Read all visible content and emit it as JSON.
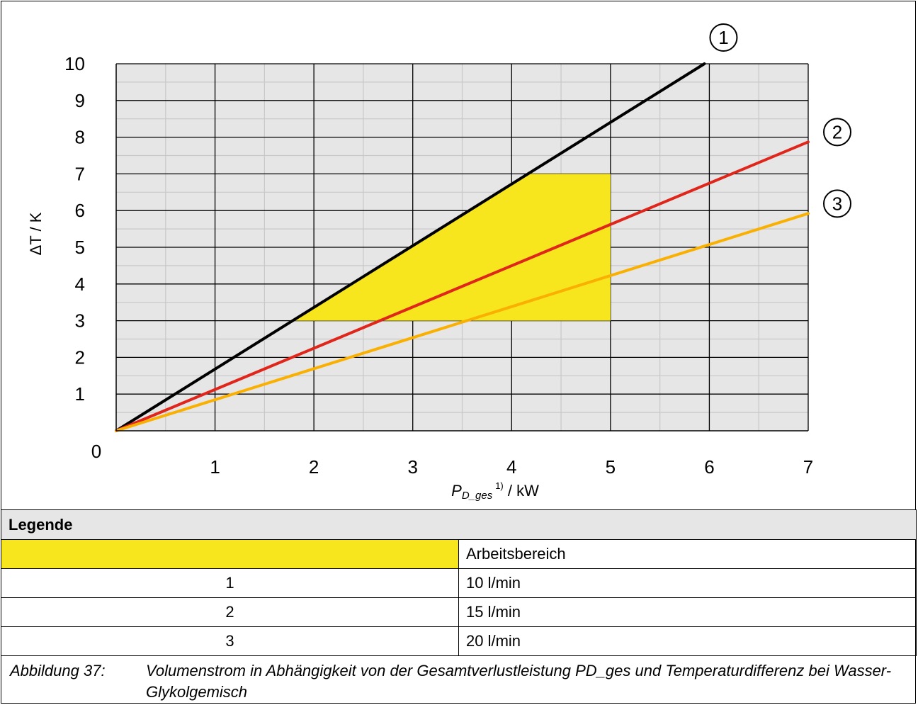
{
  "chart_data": {
    "type": "line",
    "xlabel_main": "P",
    "xlabel_sub": "D_ges",
    "xlabel_sup": "1)",
    "xlabel_unit": " / kW",
    "ylabel": "ΔT / K",
    "xlim": [
      0,
      7
    ],
    "ylim": [
      0,
      10
    ],
    "x_ticks": [
      "1",
      "2",
      "3",
      "4",
      "5",
      "6",
      "7"
    ],
    "y_ticks": [
      "1",
      "2",
      "3",
      "4",
      "5",
      "6",
      "7",
      "8",
      "9",
      "10"
    ],
    "origin_label": "0",
    "grid": true,
    "series": [
      {
        "marker": "1",
        "color": "#000000",
        "points": [
          [
            0,
            0
          ],
          [
            5.95,
            10
          ]
        ]
      },
      {
        "marker": "2",
        "color": "#e0251b",
        "points": [
          [
            0,
            0
          ],
          [
            7,
            7.87
          ]
        ]
      },
      {
        "marker": "3",
        "color": "#f9b000",
        "points": [
          [
            0,
            0
          ],
          [
            7,
            5.92
          ]
        ]
      }
    ],
    "area": {
      "name": "Arbeitsbereich",
      "color": "#f7e51e",
      "points": [
        [
          1.78,
          3
        ],
        [
          4.16,
          7
        ],
        [
          5,
          7
        ],
        [
          5,
          3
        ]
      ]
    }
  },
  "legend": {
    "title": "Legende",
    "rows": [
      {
        "key": "",
        "text": "Arbeitsbereich"
      },
      {
        "key": "1",
        "text": "10 l/min"
      },
      {
        "key": "2",
        "text": "15 l/min"
      },
      {
        "key": "3",
        "text": "20 l/min"
      }
    ]
  },
  "caption": {
    "label": "Abbildung 37:",
    "text": "Volumenstrom in Abhängigkeit von der Gesamtverlustleistung PD_ges und Temperaturdifferenz bei Wasser-Glykolgemisch"
  }
}
